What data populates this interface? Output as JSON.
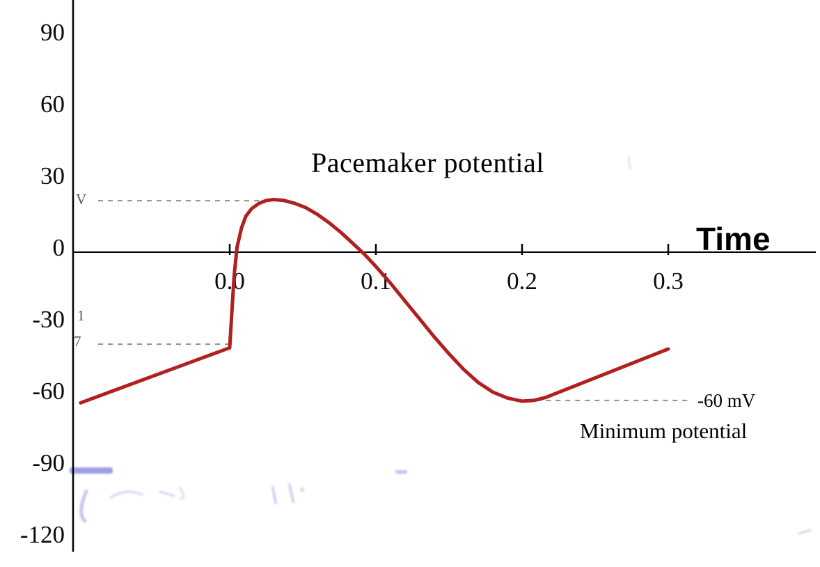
{
  "chart_data": {
    "type": "line",
    "title": "Pacemaker potential",
    "xlabel": "Time",
    "ylabel": "",
    "y_unit": "mV",
    "xlim": [
      -0.11,
      0.4
    ],
    "ylim": [
      -130,
      105
    ],
    "grid": false,
    "x_ticks": [
      {
        "value": 0.0,
        "label": "0.0"
      },
      {
        "value": 0.1,
        "label": "0.1"
      },
      {
        "value": 0.2,
        "label": "0.2"
      },
      {
        "value": 0.3,
        "label": "0.3"
      }
    ],
    "y_ticks": [
      {
        "value": 90,
        "label": "90"
      },
      {
        "value": 60,
        "label": "60"
      },
      {
        "value": 30,
        "label": "30"
      },
      {
        "value": 0,
        "label": "0"
      },
      {
        "value": -30,
        "label": "-30"
      },
      {
        "value": -60,
        "label": "-60"
      },
      {
        "value": -90,
        "label": "-90"
      },
      {
        "value": -120,
        "label": "-120"
      }
    ],
    "series": [
      {
        "name": "pacemaker-membrane-potential",
        "color": "#b02020",
        "points": [
          [
            -0.102,
            -63
          ],
          [
            0,
            -40
          ],
          [
            0.0015,
            -25
          ],
          [
            0.003,
            -10
          ],
          [
            0.005,
            2
          ],
          [
            0.008,
            10
          ],
          [
            0.011,
            15
          ],
          [
            0.015,
            18.2
          ],
          [
            0.02,
            20.4
          ],
          [
            0.025,
            21.6
          ],
          [
            0.03,
            22
          ],
          [
            0.037,
            21.6
          ],
          [
            0.044,
            20.5
          ],
          [
            0.052,
            18.6
          ],
          [
            0.06,
            15.8
          ],
          [
            0.068,
            12.3
          ],
          [
            0.076,
            8.3
          ],
          [
            0.084,
            3.8
          ],
          [
            0.092,
            -0.8
          ],
          [
            0.1,
            -6
          ],
          [
            0.11,
            -13
          ],
          [
            0.12,
            -20.5
          ],
          [
            0.13,
            -28
          ],
          [
            0.14,
            -35.5
          ],
          [
            0.15,
            -42.5
          ],
          [
            0.16,
            -49
          ],
          [
            0.17,
            -54.5
          ],
          [
            0.18,
            -58.5
          ],
          [
            0.19,
            -61
          ],
          [
            0.2,
            -62.3
          ],
          [
            0.208,
            -62
          ],
          [
            0.216,
            -60.8
          ],
          [
            0.3,
            -40.5
          ]
        ]
      }
    ],
    "dashed_lines": [
      {
        "name": "peak-level",
        "mV": 21.5,
        "t1": -0.09,
        "t2": 0.026
      },
      {
        "name": "threshold-level",
        "mV": -38.5,
        "t1": -0.09,
        "t2": 0.0
      },
      {
        "name": "minimum-level",
        "mV": -62,
        "t1": 0.203,
        "t2": 0.314
      }
    ]
  },
  "annotations": {
    "minimum_value": "-60 mV",
    "minimum_caption": "Minimum potential",
    "peak_remnant": "V",
    "remnant_1": "1",
    "remnant_7": "7"
  },
  "colors": {
    "curve": "#b02020",
    "axis": "#000000",
    "dashed": "#8f8f8f",
    "erased_ink": "#8d8de0"
  }
}
